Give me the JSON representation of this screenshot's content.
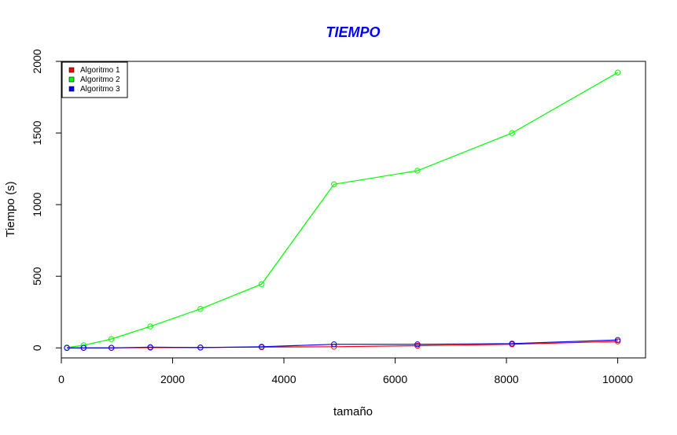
{
  "chart_data": {
    "type": "line",
    "title": "TIEMPO",
    "xlabel": "tamaño",
    "ylabel": "Tiempo (s)",
    "xlim": [
      0,
      10500
    ],
    "ylim": [
      -70,
      2000
    ],
    "xticks": [
      0,
      2000,
      4000,
      6000,
      8000,
      10000
    ],
    "yticks": [
      0,
      500,
      1000,
      1500,
      2000
    ],
    "legend_position": "top-left",
    "grid": false,
    "x": [
      100,
      400,
      900,
      1600,
      2500,
      3600,
      4900,
      6400,
      8100,
      10000
    ],
    "series": [
      {
        "name": "Algoritmo 1",
        "color": "#ff0000",
        "values": [
          0,
          1,
          1,
          2,
          3,
          5,
          8,
          15,
          25,
          45
        ]
      },
      {
        "name": "Algoritmo 2",
        "color": "#00ff00",
        "values": [
          2,
          18,
          62,
          150,
          272,
          445,
          1142,
          1237,
          1500,
          1922
        ]
      },
      {
        "name": "Algoritmo 3",
        "color": "#0000ff",
        "values": [
          0,
          0,
          0,
          5,
          2,
          8,
          25,
          25,
          30,
          55
        ]
      }
    ]
  },
  "colors": {
    "title": "#0000ff",
    "axis": "#000000",
    "background": "#ffffff"
  }
}
